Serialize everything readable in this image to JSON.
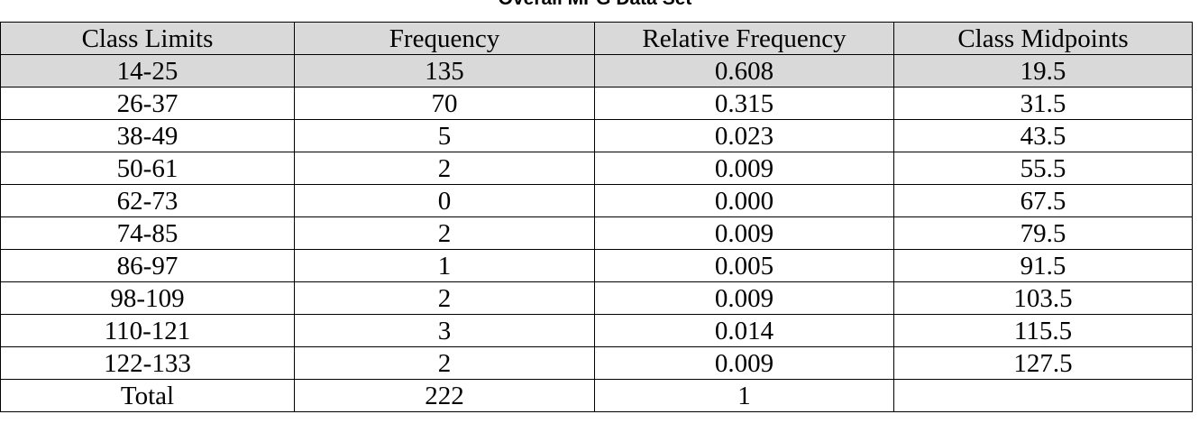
{
  "caption": "Overall MPG Data Set",
  "chart_data": {
    "type": "table",
    "columns": [
      "Class Limits",
      "Frequency",
      "Relative Frequency",
      "Class Midpoints"
    ],
    "rows": [
      [
        "14-25",
        "135",
        "0.608",
        "19.5"
      ],
      [
        "26-37",
        "70",
        "0.315",
        "31.5"
      ],
      [
        "38-49",
        "5",
        "0.023",
        "43.5"
      ],
      [
        "50-61",
        "2",
        "0.009",
        "55.5"
      ],
      [
        "62-73",
        "0",
        "0.000",
        "67.5"
      ],
      [
        "74-85",
        "2",
        "0.009",
        "79.5"
      ],
      [
        "86-97",
        "1",
        "0.005",
        "91.5"
      ],
      [
        "98-109",
        "2",
        "0.009",
        "103.5"
      ],
      [
        "110-121",
        "3",
        "0.014",
        "115.5"
      ],
      [
        "122-133",
        "2",
        "0.009",
        "127.5"
      ],
      [
        "Total",
        "222",
        "1",
        ""
      ]
    ]
  },
  "colors": {
    "header_fill": "#d9d9d9",
    "first_row_fill": "#d9d9d9",
    "border": "#000000"
  }
}
